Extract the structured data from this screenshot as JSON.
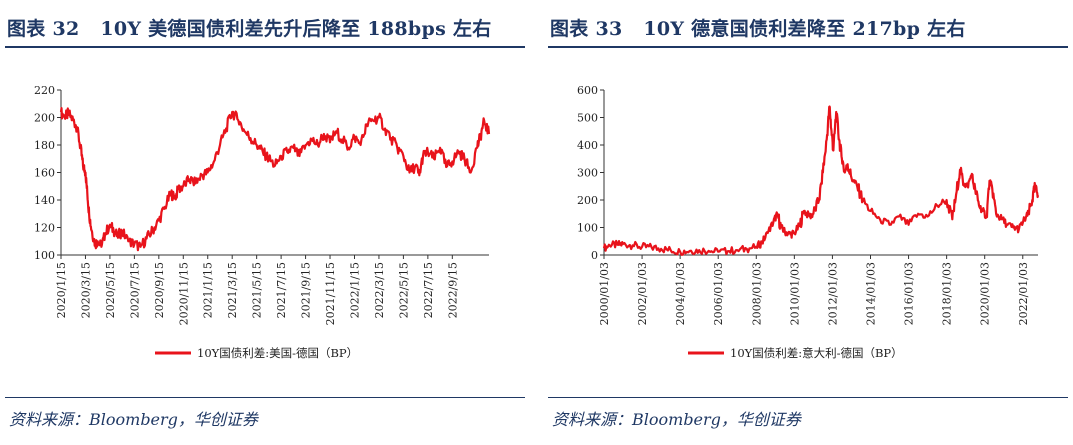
{
  "chart_data": [
    {
      "type": "line",
      "figure_label": "图表 32",
      "title": "10Y 美德国债利差先升后降至 188bps 左右",
      "source": "资料来源：Bloomberg，华创证券",
      "xlabel": "",
      "ylabel": "",
      "ylim": [
        100,
        220
      ],
      "y_ticks": [
        "100",
        "120",
        "140",
        "160",
        "180",
        "200",
        "220"
      ],
      "x_tick_labels": [
        "2020/1/15",
        "2020/3/15",
        "2020/5/15",
        "2020/7/15",
        "2020/9/15",
        "2020/11/15",
        "2021/1/15",
        "2021/3/15",
        "2021/5/15",
        "2021/7/15",
        "2021/9/15",
        "2021/11/15",
        "2022/1/15",
        "2022/3/15",
        "2022/5/15",
        "2022/7/15",
        "2022/9/15"
      ],
      "x_range_months": [
        0,
        35
      ],
      "color": "#e8131b",
      "series": [
        {
          "name": "10Y国债利差:美国-德国（BP）",
          "x_months": [
            0,
            0.3,
            0.6,
            1.0,
            1.3,
            1.6,
            1.8,
            2.0,
            2.15,
            2.3,
            2.5,
            2.8,
            3.0,
            3.3,
            3.6,
            4.0,
            4.3,
            4.6,
            5.0,
            5.5,
            6.0,
            6.5,
            7.0,
            7.5,
            8.0,
            8.5,
            9.0,
            9.3,
            9.6,
            10.0,
            10.5,
            11.0,
            11.5,
            12.0,
            12.5,
            13.0,
            13.5,
            14.0,
            14.5,
            15.0,
            15.5,
            16.0,
            16.5,
            17.0,
            17.5,
            18.0,
            18.5,
            19.0,
            19.5,
            20.0,
            20.5,
            21.0,
            21.5,
            22.0,
            22.5,
            23.0,
            23.5,
            24.0,
            24.5,
            25.0,
            25.5,
            26.0,
            26.5,
            27.0,
            27.5,
            28.0,
            28.5,
            29.0,
            29.3,
            29.6,
            30.0,
            30.5,
            31.0,
            31.5,
            32.0,
            32.5,
            33.0,
            33.5,
            34.0,
            34.3,
            34.6,
            35.0
          ],
          "values": [
            204,
            200,
            203,
            198,
            193,
            178,
            165,
            160,
            145,
            130,
            118,
            108,
            110,
            106,
            115,
            122,
            118,
            114,
            117,
            110,
            108,
            106,
            112,
            118,
            125,
            135,
            145,
            141,
            148,
            150,
            155,
            152,
            158,
            160,
            168,
            180,
            192,
            204,
            198,
            190,
            185,
            180,
            175,
            170,
            165,
            172,
            175,
            178,
            172,
            180,
            184,
            180,
            188,
            182,
            190,
            184,
            178,
            186,
            180,
            195,
            198,
            200,
            192,
            185,
            178,
            172,
            160,
            165,
            158,
            172,
            175,
            170,
            178,
            164,
            168,
            175,
            170,
            160,
            178,
            186,
            198,
            188
          ]
        }
      ]
    },
    {
      "type": "line",
      "figure_label": "图表 33",
      "title": "10Y 德意国债利差降至 217bp 左右",
      "source": "资料来源：Bloomberg，华创证券",
      "xlabel": "",
      "ylabel": "",
      "ylim": [
        0,
        600
      ],
      "y_ticks": [
        "0",
        "100",
        "200",
        "300",
        "400",
        "500",
        "600"
      ],
      "x_tick_labels": [
        "2000/01/03",
        "2002/01/03",
        "2004/01/03",
        "2006/01/03",
        "2008/01/03",
        "2010/01/03",
        "2012/01/03",
        "2014/01/03",
        "2016/01/03",
        "2018/01/03",
        "2020/01/03",
        "2022/01/03"
      ],
      "x_range_years": [
        2000,
        2022.8
      ],
      "color": "#e8131b",
      "series": [
        {
          "name": "10Y国债利差:意大利-德国（BP）",
          "x_years": [
            2000,
            2000.3,
            2000.7,
            2001,
            2001.5,
            2002,
            2002.5,
            2003,
            2003.5,
            2004,
            2004.5,
            2005,
            2005.5,
            2006,
            2006.5,
            2007,
            2007.5,
            2008,
            2008.3,
            2008.6,
            2008.9,
            2009.1,
            2009.3,
            2009.5,
            2009.8,
            2010,
            2010.3,
            2010.5,
            2010.8,
            2011,
            2011.3,
            2011.5,
            2011.7,
            2011.85,
            2011.95,
            2012.05,
            2012.2,
            2012.35,
            2012.5,
            2012.65,
            2012.8,
            2013,
            2013.3,
            2013.6,
            2014,
            2014.5,
            2015,
            2015.5,
            2016,
            2016.5,
            2017,
            2017.5,
            2018,
            2018.3,
            2018.5,
            2018.7,
            2018.9,
            2019.1,
            2019.3,
            2019.5,
            2019.7,
            2019.9,
            2020.1,
            2020.25,
            2020.4,
            2020.6,
            2020.9,
            2021.2,
            2021.5,
            2021.8,
            2022.1,
            2022.3,
            2022.5,
            2022.65,
            2022.8
          ],
          "values": [
            25,
            35,
            38,
            40,
            35,
            30,
            28,
            22,
            18,
            12,
            15,
            18,
            15,
            12,
            14,
            18,
            22,
            30,
            45,
            80,
            120,
            150,
            100,
            85,
            75,
            80,
            110,
            160,
            140,
            150,
            200,
            300,
            420,
            540,
            450,
            380,
            520,
            420,
            350,
            300,
            330,
            280,
            250,
            200,
            160,
            130,
            110,
            140,
            110,
            150,
            140,
            180,
            200,
            130,
            220,
            310,
            260,
            250,
            290,
            240,
            180,
            160,
            140,
            270,
            240,
            150,
            130,
            110,
            100,
            95,
            130,
            150,
            200,
            250,
            217
          ]
        }
      ]
    }
  ]
}
